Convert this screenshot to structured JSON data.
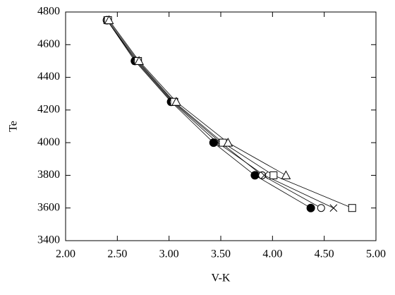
{
  "chart_data": {
    "type": "line",
    "x_label": "V-K",
    "y_label": "Te",
    "xlim": [
      2.0,
      5.0
    ],
    "xticks": [
      {
        "value": 2.0,
        "label": "2.00"
      },
      {
        "value": 2.5,
        "label": "2.50"
      },
      {
        "value": 3.0,
        "label": "3.00"
      },
      {
        "value": 3.5,
        "label": "3.50"
      },
      {
        "value": 4.0,
        "label": "4.00"
      },
      {
        "value": 4.5,
        "label": "4.50"
      },
      {
        "value": 5.0,
        "label": "5.00"
      }
    ],
    "ylim": [
      3400,
      4800
    ],
    "yticks": [
      3400,
      3600,
      3800,
      4000,
      4200,
      4400,
      4600,
      4800
    ],
    "color": "#000000",
    "series": [
      {
        "marker": "filled-circle",
        "x": [
          2.4,
          2.67,
          3.02,
          3.43,
          3.83,
          4.37
        ],
        "values": [
          4750,
          4500,
          4250,
          4000,
          3800,
          3600
        ]
      },
      {
        "marker": "open-circle",
        "x": [
          2.4,
          2.69,
          3.04,
          3.5,
          3.9,
          4.47
        ],
        "values": [
          4750,
          4500,
          4250,
          4000,
          3800,
          3600
        ]
      },
      {
        "marker": "cross",
        "x": [
          2.4,
          2.68,
          3.03,
          3.47,
          3.92,
          4.59
        ],
        "values": [
          4750,
          4500,
          4250,
          4000,
          3800,
          3600
        ]
      },
      {
        "marker": "square",
        "x": [
          2.41,
          2.7,
          3.05,
          3.52,
          4.01,
          4.77
        ],
        "values": [
          4750,
          4500,
          4250,
          4000,
          3800,
          3600
        ]
      },
      {
        "marker": "triangle",
        "x": [
          2.42,
          2.71,
          3.07,
          3.57,
          4.13,
          null
        ],
        "values": [
          4750,
          4500,
          4250,
          4000,
          3800,
          null
        ]
      }
    ]
  }
}
